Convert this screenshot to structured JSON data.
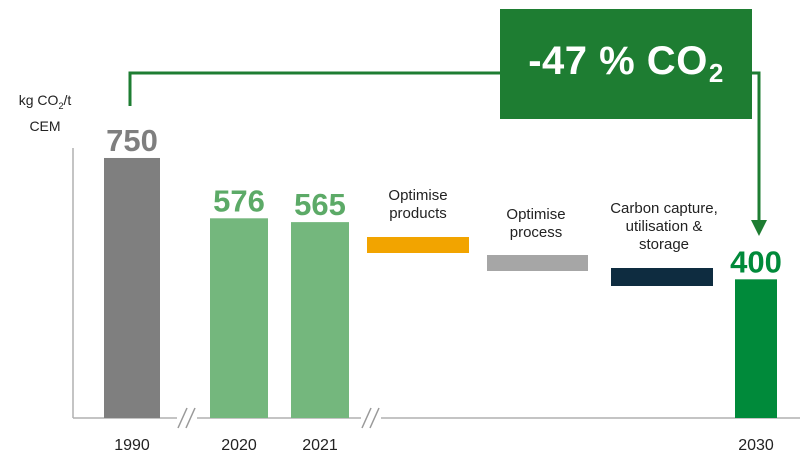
{
  "y_axis_unit": {
    "line1_pre": "kg CO",
    "sub": "2",
    "line1_post": "/t",
    "line2": "CEM"
  },
  "reduction_badge": {
    "main": "-47 % CO",
    "sub": "2"
  },
  "chart_data": {
    "type": "bar",
    "categories": [
      "1990",
      "2020",
      "2021",
      "2030"
    ],
    "values": [
      750,
      576,
      565,
      400
    ],
    "value_labels": [
      "750",
      "576",
      "565",
      "400"
    ],
    "bar_colors": [
      "#7f7f7f",
      "#74b77d",
      "#74b77d",
      "#008a3a"
    ],
    "value_label_colors": [
      "#7f7f7f",
      "#5caa67",
      "#5caa67",
      "#008a3a"
    ],
    "steps": [
      {
        "label": "Optimise products",
        "lines": [
          "Optimise",
          "products"
        ],
        "color": "#f2a400"
      },
      {
        "label": "Optimise process",
        "lines": [
          "Optimise",
          "process"
        ],
        "color": "#a6a6a6"
      },
      {
        "label": "Carbon capture, utilisation & storage",
        "lines": [
          "Carbon capture,",
          "utilisation &",
          "storage"
        ],
        "color": "#0e2c40"
      }
    ],
    "axis_breaks": [
      "1990-2020",
      "2021-steps"
    ],
    "connector_color": "#1e7d32"
  }
}
